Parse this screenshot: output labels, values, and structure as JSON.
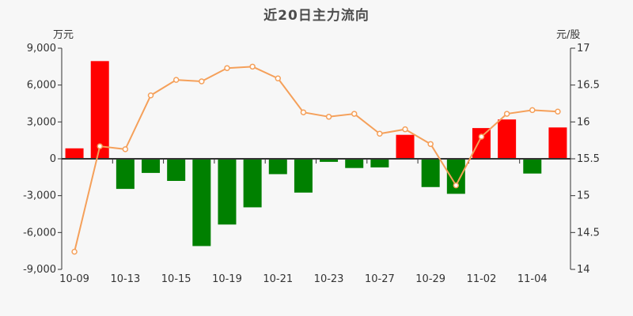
{
  "title": "近20日主力流向",
  "left_axis": {
    "unit": "万元",
    "tick_labels": [
      "9,000",
      "6,000",
      "3,000",
      "0",
      "-3,000",
      "-6,000",
      "-9,000"
    ]
  },
  "right_axis": {
    "unit": "元/股",
    "tick_labels": [
      "17",
      "16.5",
      "16",
      "15.5",
      "15",
      "14.5",
      "14"
    ]
  },
  "colors": {
    "background": "#f7f7f7",
    "inflow_bar": "#ff0000",
    "outflow_bar": "#008000",
    "price_line": "#f5a05a",
    "marker_fill": "#ffffff",
    "axis": "#333333",
    "title_text": "#4d4d4d"
  },
  "chart_data": {
    "type": "combo-bar-line",
    "categories": [
      "10-09",
      "",
      "10-13",
      "",
      "10-15",
      "",
      "10-19",
      "",
      "10-21",
      "",
      "10-23",
      "",
      "10-27",
      "",
      "10-29",
      "",
      "11-02",
      "",
      "11-04",
      ""
    ],
    "series": [
      {
        "name": "bar_flow_wan_yuan",
        "type": "bar",
        "axis": "left",
        "values": [
          850,
          7950,
          -2450,
          -1150,
          -1800,
          -7100,
          -5350,
          -3950,
          -1250,
          -2750,
          -250,
          -750,
          -700,
          1950,
          -2300,
          -2850,
          2500,
          3200,
          -1200,
          2550
        ]
      },
      {
        "name": "line_price_yuan_per_share",
        "type": "line",
        "axis": "right",
        "values": [
          14.24,
          15.67,
          15.63,
          16.36,
          16.57,
          16.55,
          16.73,
          16.75,
          16.59,
          16.13,
          16.07,
          16.11,
          15.84,
          15.9,
          15.7,
          15.14,
          15.8,
          16.11,
          16.16,
          16.14
        ]
      }
    ],
    "left_ylim": [
      -9000,
      9000
    ],
    "right_ylim": [
      14,
      17
    ],
    "grid": false,
    "legend": "none"
  }
}
